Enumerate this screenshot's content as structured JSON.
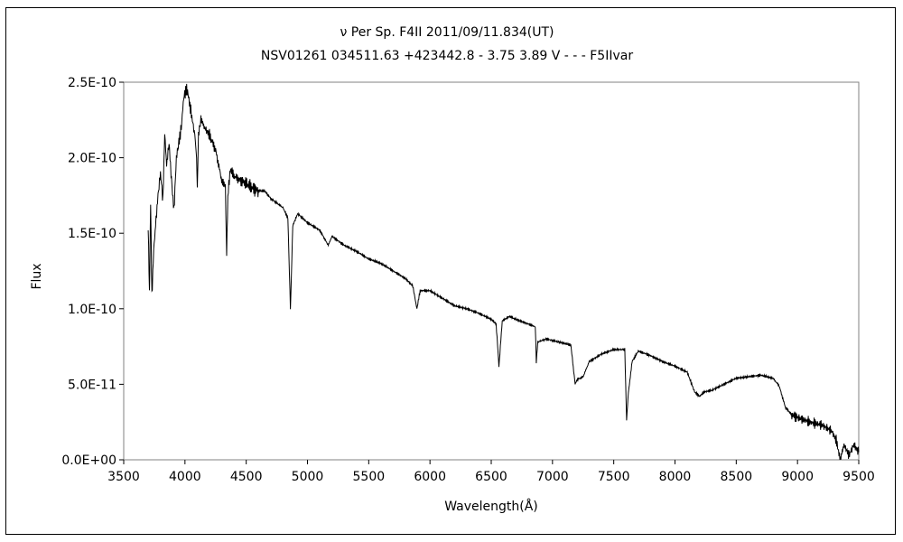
{
  "chart_data": {
    "type": "line",
    "title": "ν Per Sp. F4II 2011/09/11.834(UT)",
    "subtitle": "NSV01261 034511.63 +423442.8 - 3.75 3.89 V - - - F5IIvar",
    "xlabel": "Wavelength(Å)",
    "ylabel": "Flux",
    "xlim": [
      3500,
      9500
    ],
    "ylim": [
      0,
      2.5e-10
    ],
    "grid": false,
    "x_ticks": [
      3500,
      4000,
      4500,
      5000,
      5500,
      6000,
      6500,
      7000,
      7500,
      8000,
      8500,
      9000,
      9500
    ],
    "x_tick_labels": [
      "3500",
      "4000",
      "4500",
      "5000",
      "5500",
      "6000",
      "6500",
      "7000",
      "7500",
      "8000",
      "8500",
      "9000",
      "9500"
    ],
    "y_ticks": [
      0,
      5e-11,
      1e-10,
      1.5e-10,
      2e-10,
      2.5e-10
    ],
    "y_tick_labels": [
      "0.0E+00",
      "5.0E-11",
      "1.0E-10",
      "1.5E-10",
      "2.0E-10",
      "2.5E-10"
    ],
    "series": [
      {
        "color": "#000000",
        "x": [
          3700,
          3710,
          3720,
          3730,
          3745,
          3760,
          3780,
          3800,
          3820,
          3835,
          3850,
          3870,
          3890,
          3910,
          3930,
          3950,
          3970,
          3990,
          4010,
          4025,
          4040,
          4060,
          4080,
          4095,
          4101,
          4110,
          4130,
          4160,
          4200,
          4250,
          4300,
          4330,
          4340,
          4350,
          4370,
          4400,
          4450,
          4500,
          4550,
          4600,
          4650,
          4700,
          4750,
          4800,
          4840,
          4861,
          4880,
          4920,
          5000,
          5100,
          5170,
          5200,
          5300,
          5400,
          5500,
          5600,
          5700,
          5800,
          5860,
          5893,
          5920,
          6000,
          6100,
          6200,
          6300,
          6400,
          6500,
          6540,
          6563,
          6590,
          6650,
          6700,
          6800,
          6860,
          6868,
          6880,
          6950,
          7050,
          7150,
          7185,
          7200,
          7250,
          7300,
          7400,
          7500,
          7590,
          7605,
          7620,
          7650,
          7700,
          7800,
          7900,
          8000,
          8100,
          8160,
          8200,
          8240,
          8300,
          8400,
          8500,
          8600,
          8700,
          8800,
          8850,
          8900,
          8950,
          9000,
          9100,
          9200,
          9280,
          9320,
          9350,
          9380,
          9420,
          9460,
          9500
        ],
        "y": [
          1.55e-10,
          1.1e-10,
          1.7e-10,
          1.08e-10,
          1.4e-10,
          1.55e-10,
          1.75e-10,
          1.9e-10,
          1.72e-10,
          2.15e-10,
          1.95e-10,
          2.1e-10,
          1.85e-10,
          1.65e-10,
          2e-10,
          2.1e-10,
          2.2e-10,
          2.4e-10,
          2.45e-10,
          2.42e-10,
          2.35e-10,
          2.25e-10,
          2.15e-10,
          2e-10,
          1.8e-10,
          2.15e-10,
          2.25e-10,
          2.2e-10,
          2.15e-10,
          2.05e-10,
          1.85e-10,
          1.8e-10,
          1.35e-10,
          1.75e-10,
          1.92e-10,
          1.88e-10,
          1.85e-10,
          1.83e-10,
          1.8e-10,
          1.78e-10,
          1.78e-10,
          1.73e-10,
          1.7e-10,
          1.67e-10,
          1.6e-10,
          1e-10,
          1.55e-10,
          1.63e-10,
          1.57e-10,
          1.52e-10,
          1.42e-10,
          1.48e-10,
          1.42e-10,
          1.38e-10,
          1.33e-10,
          1.3e-10,
          1.25e-10,
          1.2e-10,
          1.15e-10,
          1e-10,
          1.12e-10,
          1.12e-10,
          1.07e-10,
          1.02e-10,
          1e-10,
          9.7e-11,
          9.3e-11,
          9e-11,
          6.2e-11,
          9.2e-11,
          9.5e-11,
          9.3e-11,
          9e-11,
          8.8e-11,
          6.5e-11,
          7.8e-11,
          8e-11,
          7.8e-11,
          7.6e-11,
          5e-11,
          5.3e-11,
          5.5e-11,
          6.5e-11,
          7e-11,
          7.3e-11,
          7.3e-11,
          2.6e-11,
          4.5e-11,
          6.5e-11,
          7.2e-11,
          6.9e-11,
          6.5e-11,
          6.2e-11,
          5.8e-11,
          4.5e-11,
          4.2e-11,
          4.5e-11,
          4.6e-11,
          5e-11,
          5.4e-11,
          5.5e-11,
          5.6e-11,
          5.4e-11,
          4.9e-11,
          3.5e-11,
          3e-11,
          2.8e-11,
          2.5e-11,
          2.3e-11,
          1.9e-11,
          1.2e-11,
          0.0,
          1e-11,
          3e-12,
          1e-11,
          5e-12
        ]
      }
    ]
  }
}
